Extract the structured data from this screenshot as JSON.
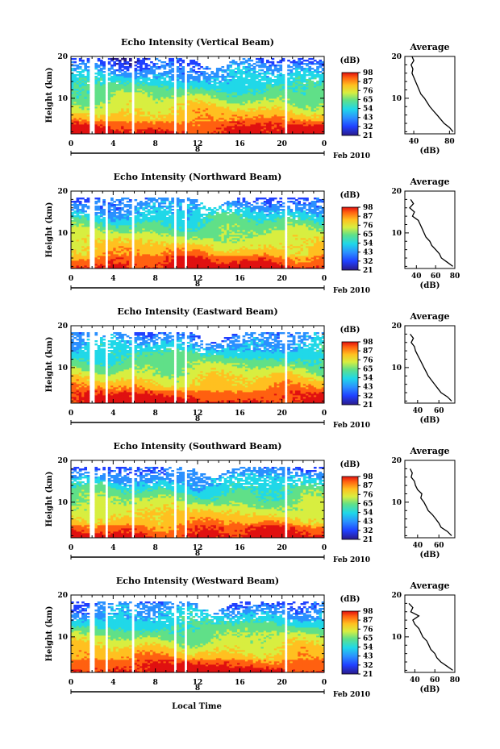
{
  "figure": {
    "xlabel": "Local Time",
    "date_label": "Feb 2010",
    "day_label": "8",
    "ylabel": "Height (km)",
    "cbar_unit": "(dB)",
    "avg_title": "Average",
    "avg_xlabel": "(dB)"
  },
  "chart_data": [
    {
      "type": "heatmap",
      "title": "Echo Intensity (Vertical Beam)",
      "xlabel": "Local Time",
      "ylabel": "Height (km)",
      "x_ticks": [
        "0",
        "4",
        "8",
        "12",
        "16",
        "20",
        "0"
      ],
      "y_ticks": [
        "10",
        "20"
      ],
      "xlim": [
        0,
        24
      ],
      "ylim": [
        1.5,
        20
      ],
      "colorbar": {
        "label": "(dB)",
        "ticks": [
          "21",
          "32",
          "43",
          "54",
          "65",
          "76",
          "87",
          "98"
        ],
        "range": [
          21,
          98
        ]
      },
      "data_gaps_hours": [
        2.0,
        3.3,
        5.8,
        9.8,
        10.9,
        20.3
      ],
      "echo_top_km": 19.5,
      "profile": {
        "title": "Average",
        "xlabel": "(dB)",
        "x_ticks": [
          "40",
          "80"
        ],
        "xlim": [
          30,
          86
        ],
        "y_ticks": [
          "10",
          "20"
        ],
        "ylim": [
          1.5,
          20
        ],
        "heights_km": [
          2,
          3,
          4,
          5,
          6,
          7,
          8,
          9,
          10,
          11,
          12,
          13,
          14,
          15,
          16,
          17,
          18,
          19,
          20
        ],
        "values_db": [
          84,
          80,
          74,
          70,
          66,
          62,
          58,
          55,
          52,
          48,
          46,
          44,
          42,
          40,
          38,
          39,
          37,
          40,
          38
        ]
      }
    },
    {
      "type": "heatmap",
      "title": "Echo Intensity (Northward Beam)",
      "xlabel": "Local Time",
      "ylabel": "Height (km)",
      "x_ticks": [
        "0",
        "4",
        "8",
        "12",
        "16",
        "20",
        "0"
      ],
      "y_ticks": [
        "10",
        "20"
      ],
      "xlim": [
        0,
        24
      ],
      "ylim": [
        1.5,
        20
      ],
      "colorbar": {
        "label": "(dB)",
        "ticks": [
          "21",
          "32",
          "43",
          "54",
          "65",
          "76",
          "87",
          "98"
        ],
        "range": [
          21,
          98
        ]
      },
      "data_gaps_hours": [
        2.0,
        3.3,
        5.8,
        9.8,
        10.9,
        20.3
      ],
      "echo_top_km": 18.5,
      "profile": {
        "title": "Average",
        "xlabel": "(dB)",
        "x_ticks": [
          "40",
          "60",
          "80"
        ],
        "xlim": [
          28,
          80
        ],
        "y_ticks": [
          "10",
          "20"
        ],
        "ylim": [
          1.5,
          20
        ],
        "heights_km": [
          2,
          3,
          4,
          5,
          6,
          7,
          8,
          9,
          10,
          11,
          12,
          13,
          14,
          15,
          16,
          17,
          18
        ],
        "values_db": [
          78,
          72,
          66,
          64,
          60,
          56,
          54,
          50,
          48,
          46,
          44,
          42,
          36,
          38,
          33,
          37,
          34
        ]
      }
    },
    {
      "type": "heatmap",
      "title": "Echo Intensity (Eastward Beam)",
      "xlabel": "Local Time",
      "ylabel": "Height (km)",
      "x_ticks": [
        "0",
        "4",
        "8",
        "12",
        "16",
        "20",
        "0"
      ],
      "y_ticks": [
        "10",
        "20"
      ],
      "xlim": [
        0,
        24
      ],
      "ylim": [
        1.5,
        20
      ],
      "colorbar": {
        "label": "(dB)",
        "ticks": [
          "21",
          "32",
          "43",
          "54",
          "65",
          "76",
          "87",
          "98"
        ],
        "range": [
          21,
          98
        ]
      },
      "data_gaps_hours": [
        2.0,
        3.3,
        5.8,
        9.8,
        10.9,
        20.3
      ],
      "echo_top_km": 18.5,
      "profile": {
        "title": "Average",
        "xlabel": "(dB)",
        "x_ticks": [
          "40",
          "60"
        ],
        "xlim": [
          28,
          75
        ],
        "y_ticks": [
          "10",
          "20"
        ],
        "ylim": [
          1.5,
          20
        ],
        "heights_km": [
          2,
          3,
          4,
          5,
          6,
          7,
          8,
          9,
          10,
          11,
          12,
          13,
          14,
          15,
          16,
          17,
          18
        ],
        "values_db": [
          72,
          68,
          62,
          59,
          56,
          53,
          50,
          48,
          46,
          44,
          42,
          40,
          38,
          37,
          34,
          36,
          33
        ]
      }
    },
    {
      "type": "heatmap",
      "title": "Echo Intensity (Southward Beam)",
      "xlabel": "Local Time",
      "ylabel": "Height (km)",
      "x_ticks": [
        "0",
        "4",
        "8",
        "12",
        "16",
        "20",
        "0"
      ],
      "y_ticks": [
        "10",
        "20"
      ],
      "xlim": [
        0,
        24
      ],
      "ylim": [
        1.5,
        20
      ],
      "colorbar": {
        "label": "(dB)",
        "ticks": [
          "21",
          "32",
          "43",
          "54",
          "65",
          "76",
          "87",
          "98"
        ],
        "range": [
          21,
          98
        ]
      },
      "data_gaps_hours": [
        2.0,
        3.3,
        5.8,
        9.8,
        10.9,
        20.3
      ],
      "echo_top_km": 18.5,
      "profile": {
        "title": "Average",
        "xlabel": "(dB)",
        "x_ticks": [
          "40",
          "60"
        ],
        "xlim": [
          28,
          75
        ],
        "y_ticks": [
          "10",
          "20"
        ],
        "ylim": [
          1.5,
          20
        ],
        "heights_km": [
          2,
          3,
          4,
          5,
          6,
          7,
          8,
          9,
          10,
          11,
          12,
          13,
          14,
          15,
          16,
          17,
          18
        ],
        "values_db": [
          72,
          68,
          62,
          60,
          57,
          54,
          50,
          48,
          46,
          43,
          44,
          40,
          38,
          37,
          34,
          35,
          33
        ]
      }
    },
    {
      "type": "heatmap",
      "title": "Echo Intensity (Westward Beam)",
      "xlabel": "Local Time",
      "ylabel": "Height (km)",
      "x_ticks": [
        "0",
        "4",
        "8",
        "12",
        "16",
        "20",
        "0"
      ],
      "y_ticks": [
        "10",
        "20"
      ],
      "xlim": [
        0,
        24
      ],
      "ylim": [
        1.5,
        20
      ],
      "colorbar": {
        "label": "(dB)",
        "ticks": [
          "21",
          "32",
          "43",
          "54",
          "65",
          "76",
          "87",
          "98"
        ],
        "range": [
          21,
          98
        ]
      },
      "data_gaps_hours": [
        2.0,
        3.3,
        5.8,
        9.8,
        10.9,
        20.3
      ],
      "echo_top_km": 18.5,
      "profile": {
        "title": "Average",
        "xlabel": "(dB)",
        "x_ticks": [
          "40",
          "60",
          "80"
        ],
        "xlim": [
          30,
          80
        ],
        "y_ticks": [
          "10",
          "20"
        ],
        "ylim": [
          1.5,
          20
        ],
        "heights_km": [
          2,
          3,
          4,
          5,
          6,
          7,
          8,
          9,
          10,
          11,
          12,
          13,
          14,
          15,
          16,
          17,
          18
        ],
        "values_db": [
          78,
          72,
          66,
          62,
          60,
          56,
          54,
          52,
          48,
          46,
          44,
          40,
          38,
          44,
          36,
          38,
          34
        ]
      }
    }
  ]
}
